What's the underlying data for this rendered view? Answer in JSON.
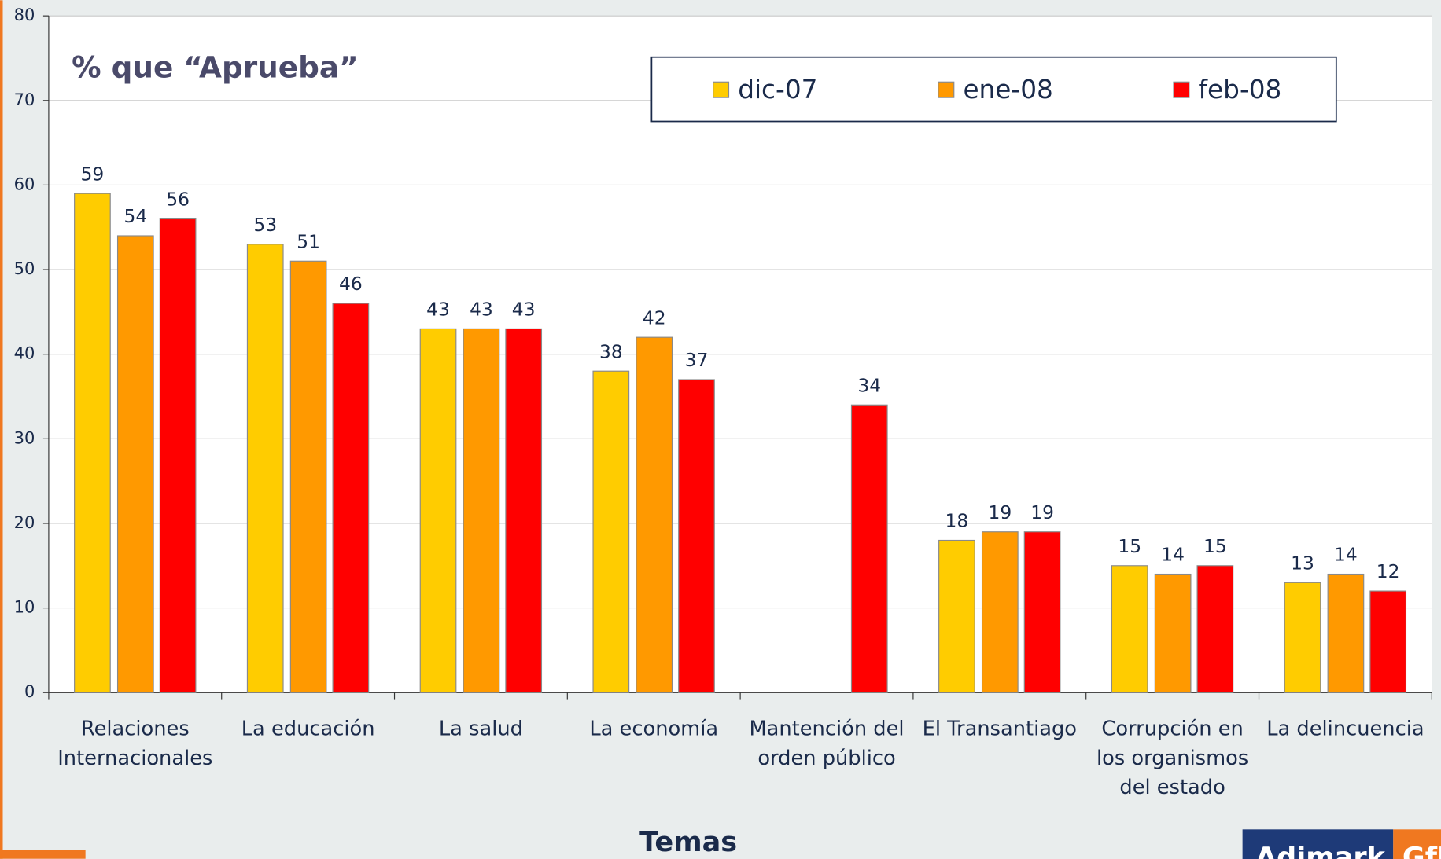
{
  "chart_data": {
    "type": "bar",
    "title": "% que “Aprueba”",
    "x_label": "Temas",
    "categories": [
      [
        "Relaciones",
        "Internacionales"
      ],
      [
        "La educación"
      ],
      [
        "La salud"
      ],
      [
        "La economía"
      ],
      [
        "Mantención del",
        "orden público"
      ],
      [
        "El Transantiago"
      ],
      [
        "Corrupción en",
        "los organismos",
        "del estado"
      ],
      [
        "La delincuencia"
      ]
    ],
    "series": [
      {
        "name": "dic-07",
        "color": "#ffcc00",
        "values": [
          59,
          53,
          43,
          38,
          null,
          18,
          15,
          13
        ]
      },
      {
        "name": "ene-08",
        "color": "#ff9900",
        "values": [
          54,
          51,
          43,
          42,
          null,
          19,
          14,
          14
        ]
      },
      {
        "name": "feb-08",
        "color": "#ff0000",
        "values": [
          56,
          46,
          43,
          37,
          34,
          19,
          15,
          12
        ]
      }
    ],
    "ylim": [
      0,
      80
    ],
    "yticks": [
      0,
      10,
      20,
      30,
      40,
      50,
      60,
      70,
      80
    ],
    "grid": true,
    "legend": "top-right",
    "logo": [
      "Adimark",
      "GfK"
    ]
  }
}
